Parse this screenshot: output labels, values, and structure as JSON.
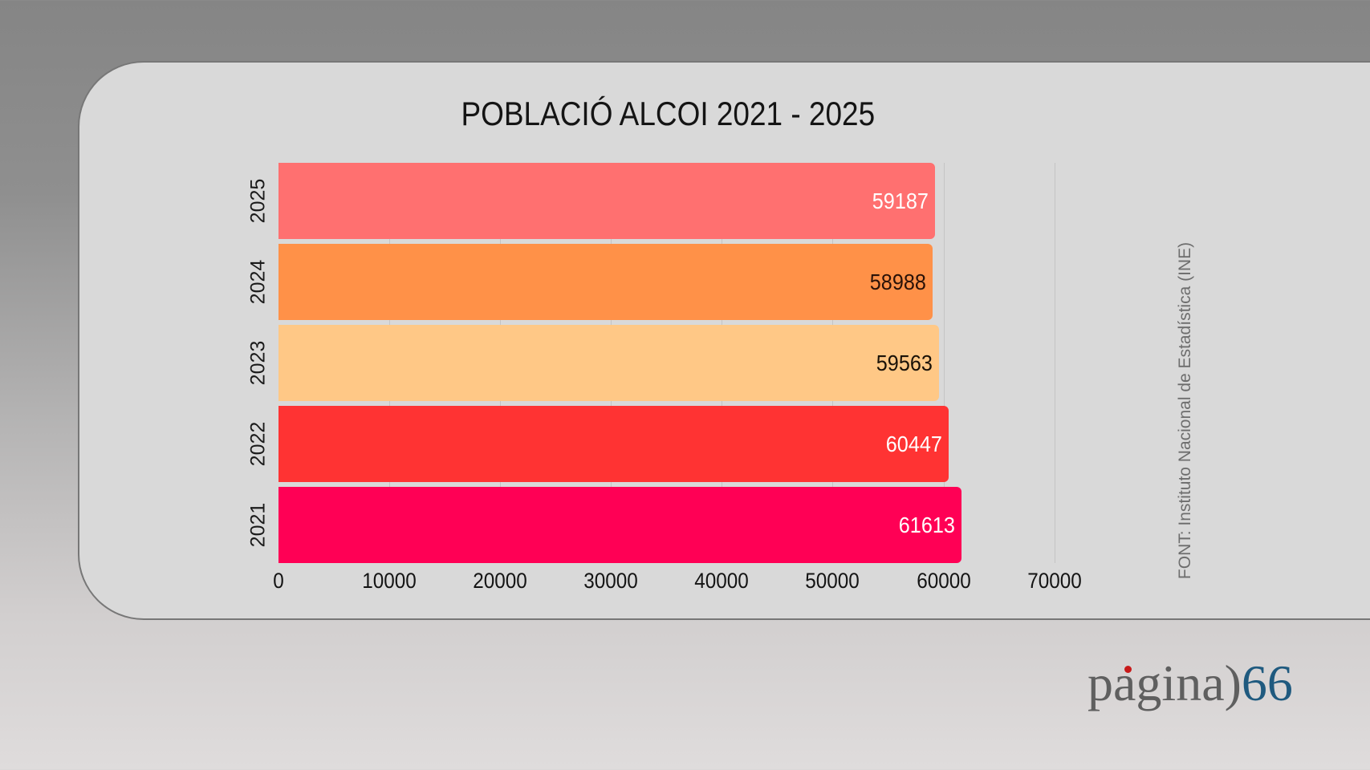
{
  "chart_data": {
    "type": "bar",
    "orientation": "horizontal",
    "title": "POBLACIÓ ALCOI 2021 - 2025",
    "categories": [
      "2025",
      "2024",
      "2023",
      "2022",
      "2021"
    ],
    "values": [
      59187,
      58988,
      59563,
      60447,
      61613
    ],
    "bar_colors": [
      "#ff7070",
      "#ff9148",
      "#ffc886",
      "#ff3333",
      "#ff0055"
    ],
    "data_label_colors": [
      "#ffffff",
      "#2a1208",
      "#1a1208",
      "#ffffff",
      "#ffffff"
    ],
    "xlabel": "",
    "ylabel": "",
    "xlim": [
      0,
      70000
    ],
    "x_ticks": [
      "0",
      "10000",
      "20000",
      "30000",
      "40000",
      "50000",
      "60000",
      "70000"
    ],
    "grid": true,
    "legend": null,
    "source_note": "FONT: Instituto Nacional de Estadística (INE)"
  },
  "header": {
    "title": "POBLACIÓ ALCOI 2021 - 2025"
  },
  "bars": [
    {
      "year": "2025",
      "value": "59187",
      "color": "#ff7070",
      "label_color": "#ffffff"
    },
    {
      "year": "2024",
      "value": "58988",
      "color": "#ff9148",
      "label_color": "#2a1208"
    },
    {
      "year": "2023",
      "value": "59563",
      "color": "#ffc886",
      "label_color": "#1a1208"
    },
    {
      "year": "2022",
      "value": "60447",
      "color": "#ff3333",
      "label_color": "#ffffff"
    },
    {
      "year": "2021",
      "value": "61613",
      "color": "#ff0055",
      "label_color": "#ffffff"
    }
  ],
  "axis": {
    "ticks": [
      "0",
      "10000",
      "20000",
      "30000",
      "40000",
      "50000",
      "60000",
      "70000"
    ]
  },
  "source": {
    "text": "FONT: Instituto Nacional de Estadística (INE)"
  },
  "logo": {
    "word": "pagina",
    "bracket": ")",
    "number": "66",
    "accent_dot_color": "#c81a1a",
    "number_color": "#1f5a7f"
  }
}
